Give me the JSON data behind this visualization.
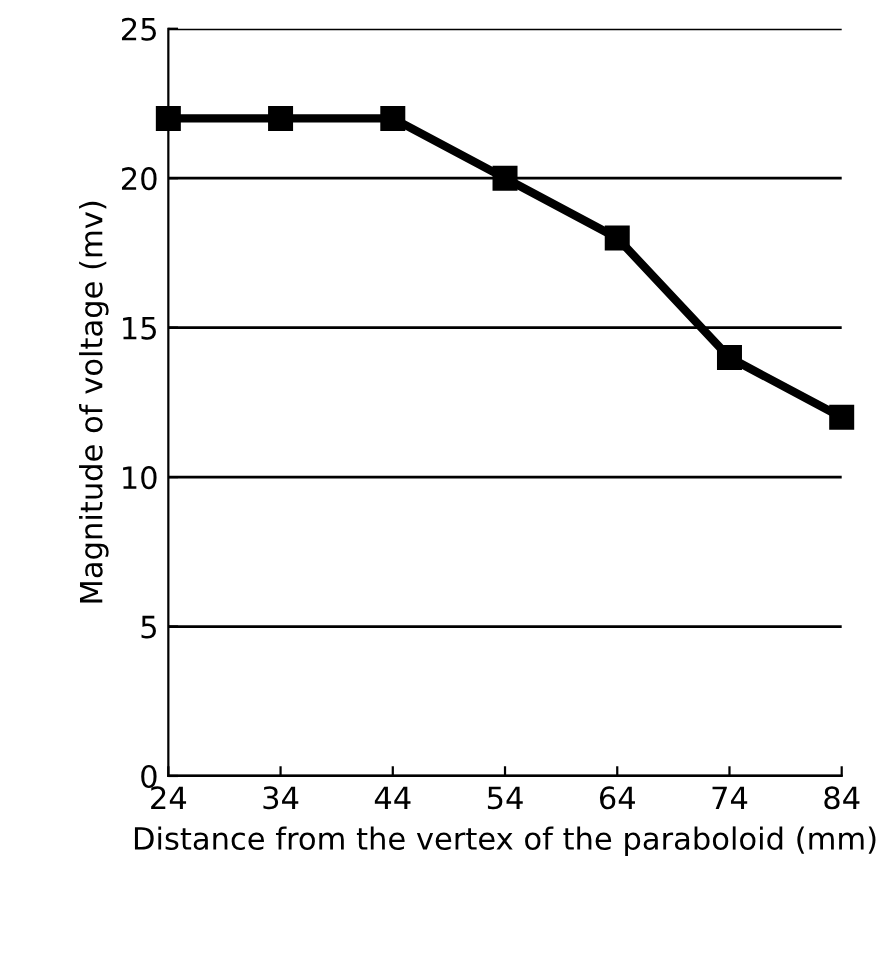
{
  "chart_data": {
    "type": "line",
    "xlabel": "Distance from the vertex of the paraboloid (mm)",
    "ylabel": "Magnitude of voltage (mv)",
    "x": [
      24,
      34,
      44,
      54,
      64,
      74,
      84
    ],
    "series": [
      {
        "color": "#000000",
        "values": [
          22,
          22,
          22,
          20,
          18,
          14,
          12
        ]
      }
    ],
    "xlim": [
      24,
      84
    ],
    "xticks": [
      24,
      34,
      44,
      54,
      64,
      74,
      84
    ],
    "ylim": [
      0,
      25
    ],
    "yticks": [
      0,
      5,
      10,
      15,
      20,
      25
    ],
    "grid": "y",
    "marker": "square",
    "line_style": "solid",
    "legend": false
  }
}
